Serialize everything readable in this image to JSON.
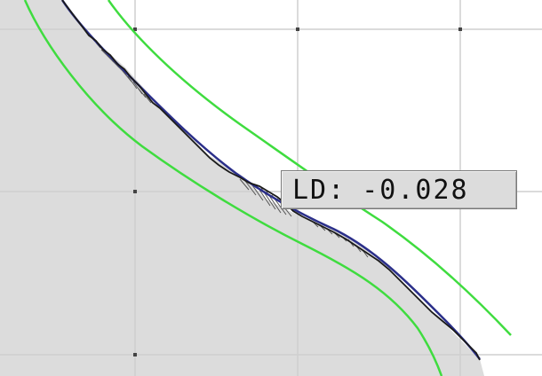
{
  "measurement_readout": {
    "label": "LD:",
    "value": "-0.028"
  },
  "colors": {
    "material_fill": "#dcdcdc",
    "tolerance_band": "#3fdc3f",
    "nominal_profile": "#2b2f8a",
    "measured_profile": "#1a1a1a",
    "deviation_hatch": "#555555",
    "grid": "#cfcfcf",
    "background": "#ffffff"
  }
}
